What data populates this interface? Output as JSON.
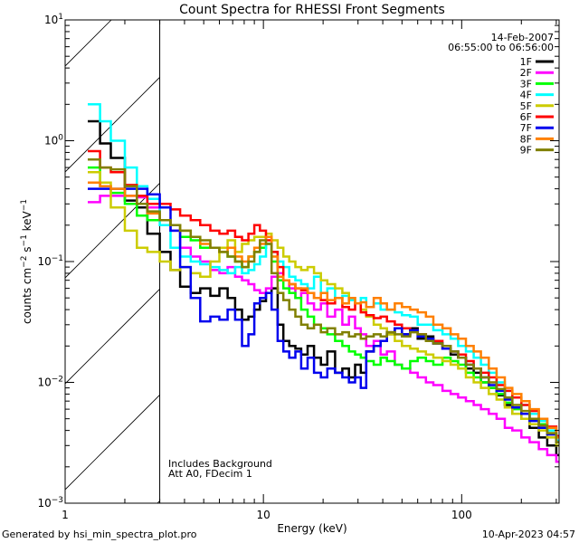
{
  "chart_data": {
    "type": "line",
    "title": "Count Spectra for RHESSI Front Segments",
    "xlabel": "Energy (keV)",
    "ylabel": "counts cm-2 s-1 keV-1",
    "xscale": "log",
    "yscale": "log",
    "xlim": [
      1,
      310
    ],
    "ylim": [
      0.001,
      10
    ],
    "x_ticks": [
      {
        "value": 1,
        "label": "1"
      },
      {
        "value": 10,
        "label": "10"
      },
      {
        "value": 100,
        "label": "100"
      }
    ],
    "y_ticks": [
      {
        "value": 10,
        "base": "10",
        "exp": "1"
      },
      {
        "value": 1,
        "base": "10",
        "exp": "0"
      },
      {
        "value": 0.1,
        "base": "10",
        "exp": "−1"
      },
      {
        "value": 0.01,
        "base": "10",
        "exp": "−2"
      },
      {
        "value": 0.001,
        "base": "10",
        "exp": "−3"
      }
    ],
    "grid": false,
    "excluded_region": {
      "from": 1,
      "to": 3,
      "style": "hatched"
    },
    "annotations": {
      "date": "14-Feb-2007",
      "time_range": "06:55:00 to 06:56:00",
      "notes": [
        "Includes Background",
        "Att A0, FDecim 1"
      ]
    },
    "legend_position": "top-right",
    "series": [
      {
        "name": "1F",
        "color": "#000000",
        "x": [
          1.3,
          1.5,
          1.7,
          2.0,
          2.3,
          2.6,
          3.0,
          3.4,
          3.8,
          4.3,
          4.8,
          5.4,
          6.0,
          6.6,
          7.2,
          7.8,
          8.4,
          9.0,
          9.6,
          10.3,
          11.0,
          11.8,
          12.6,
          13.5,
          14.5,
          15.5,
          16.7,
          18.0,
          19.5,
          21,
          23,
          25,
          27,
          29,
          31,
          33,
          36,
          39,
          42,
          46,
          50,
          55,
          60,
          66,
          72,
          80,
          88,
          96,
          105,
          115,
          125,
          137,
          150,
          165,
          180,
          200,
          220,
          245,
          270,
          300
        ],
        "y": [
          1.45,
          0.95,
          0.72,
          0.32,
          0.28,
          0.17,
          0.12,
          0.085,
          0.062,
          0.055,
          0.06,
          0.052,
          0.06,
          0.05,
          0.04,
          0.033,
          0.035,
          0.04,
          0.047,
          0.055,
          0.06,
          0.03,
          0.022,
          0.02,
          0.019,
          0.017,
          0.02,
          0.016,
          0.014,
          0.018,
          0.012,
          0.013,
          0.011,
          0.014,
          0.012,
          0.018,
          0.02,
          0.022,
          0.025,
          0.028,
          0.025,
          0.028,
          0.023,
          0.024,
          0.021,
          0.019,
          0.017,
          0.016,
          0.013,
          0.012,
          0.01,
          0.009,
          0.0078,
          0.0065,
          0.0055,
          0.005,
          0.0042,
          0.0035,
          0.003,
          0.0025
        ]
      },
      {
        "name": "2F",
        "color": "#ff00ff",
        "x": [
          1.3,
          1.5,
          1.7,
          2.0,
          2.3,
          2.6,
          3.0,
          3.4,
          3.8,
          4.3,
          4.8,
          5.4,
          6.0,
          6.6,
          7.2,
          7.8,
          8.4,
          9.0,
          9.6,
          10.3,
          11.0,
          11.8,
          12.6,
          13.5,
          14.5,
          15.5,
          16.7,
          18.0,
          19.5,
          21,
          23,
          25,
          27,
          29,
          31,
          33,
          36,
          39,
          42,
          46,
          50,
          55,
          60,
          66,
          72,
          80,
          88,
          96,
          105,
          115,
          125,
          137,
          150,
          165,
          180,
          200,
          220,
          245,
          270,
          300
        ],
        "y": [
          0.31,
          0.35,
          0.35,
          0.35,
          0.34,
          0.28,
          0.22,
          0.18,
          0.13,
          0.11,
          0.1,
          0.085,
          0.08,
          0.09,
          0.075,
          0.07,
          0.065,
          0.058,
          0.055,
          0.06,
          0.075,
          0.08,
          0.07,
          0.06,
          0.05,
          0.055,
          0.045,
          0.04,
          0.045,
          0.035,
          0.04,
          0.03,
          0.035,
          0.028,
          0.025,
          0.02,
          0.022,
          0.017,
          0.018,
          0.014,
          0.013,
          0.012,
          0.011,
          0.01,
          0.0095,
          0.0085,
          0.008,
          0.0075,
          0.007,
          0.0065,
          0.006,
          0.0055,
          0.005,
          0.0042,
          0.004,
          0.0035,
          0.0032,
          0.0028,
          0.0025,
          0.0022
        ]
      },
      {
        "name": "3F",
        "color": "#00ff00",
        "x": [
          1.3,
          1.5,
          1.7,
          2.0,
          2.3,
          2.6,
          3.0,
          3.4,
          3.8,
          4.3,
          4.8,
          5.4,
          6.0,
          6.6,
          7.2,
          7.8,
          8.4,
          9.0,
          9.6,
          10.3,
          11.0,
          11.8,
          12.6,
          13.5,
          14.5,
          15.5,
          16.7,
          18.0,
          19.5,
          21,
          23,
          25,
          27,
          29,
          31,
          33,
          36,
          39,
          42,
          46,
          50,
          55,
          60,
          66,
          72,
          80,
          88,
          96,
          105,
          115,
          125,
          137,
          150,
          165,
          180,
          200,
          220,
          245,
          270,
          300
        ],
        "y": [
          0.6,
          0.42,
          0.37,
          0.3,
          0.24,
          0.22,
          0.22,
          0.2,
          0.16,
          0.15,
          0.13,
          0.13,
          0.12,
          0.11,
          0.1,
          0.09,
          0.11,
          0.12,
          0.13,
          0.14,
          0.1,
          0.07,
          0.06,
          0.055,
          0.05,
          0.04,
          0.035,
          0.03,
          0.028,
          0.025,
          0.022,
          0.02,
          0.018,
          0.017,
          0.016,
          0.015,
          0.014,
          0.016,
          0.015,
          0.014,
          0.013,
          0.015,
          0.016,
          0.015,
          0.014,
          0.016,
          0.015,
          0.014,
          0.012,
          0.011,
          0.01,
          0.009,
          0.008,
          0.0068,
          0.006,
          0.0055,
          0.005,
          0.0045,
          0.0038,
          0.003
        ]
      },
      {
        "name": "4F",
        "color": "#00ffff",
        "x": [
          1.3,
          1.5,
          1.7,
          2.0,
          2.3,
          2.6,
          3.0,
          3.4,
          3.8,
          4.3,
          4.8,
          5.4,
          6.0,
          6.6,
          7.2,
          7.8,
          8.4,
          9.0,
          9.6,
          10.3,
          11.0,
          11.8,
          12.6,
          13.5,
          14.5,
          15.5,
          16.7,
          18.0,
          19.5,
          21,
          23,
          25,
          27,
          29,
          31,
          33,
          36,
          39,
          42,
          46,
          50,
          55,
          60,
          66,
          72,
          80,
          88,
          96,
          105,
          115,
          125,
          137,
          150,
          165,
          180,
          200,
          220,
          245,
          270,
          300
        ],
        "y": [
          2.0,
          1.45,
          1.0,
          0.6,
          0.42,
          0.33,
          0.2,
          0.13,
          0.11,
          0.1,
          0.095,
          0.09,
          0.085,
          0.08,
          0.09,
          0.08,
          0.085,
          0.095,
          0.11,
          0.14,
          0.12,
          0.1,
          0.09,
          0.075,
          0.07,
          0.065,
          0.06,
          0.075,
          0.055,
          0.06,
          0.05,
          0.052,
          0.048,
          0.045,
          0.05,
          0.042,
          0.045,
          0.04,
          0.04,
          0.038,
          0.036,
          0.035,
          0.03,
          0.03,
          0.027,
          0.025,
          0.023,
          0.02,
          0.018,
          0.016,
          0.014,
          0.012,
          0.01,
          0.0085,
          0.0075,
          0.0065,
          0.0055,
          0.0048,
          0.004,
          0.0033
        ]
      },
      {
        "name": "5F",
        "color": "#cccc00",
        "x": [
          1.3,
          1.5,
          1.7,
          2.0,
          2.3,
          2.6,
          3.0,
          3.4,
          3.8,
          4.3,
          4.8,
          5.4,
          6.0,
          6.6,
          7.2,
          7.8,
          8.4,
          9.0,
          9.6,
          10.3,
          11.0,
          11.8,
          12.6,
          13.5,
          14.5,
          15.5,
          16.7,
          18.0,
          19.5,
          21,
          23,
          25,
          27,
          29,
          31,
          33,
          36,
          39,
          42,
          46,
          50,
          55,
          60,
          66,
          72,
          80,
          88,
          96,
          105,
          115,
          125,
          137,
          150,
          165,
          180,
          200,
          220,
          245,
          270,
          300
        ],
        "y": [
          0.55,
          0.45,
          0.28,
          0.18,
          0.13,
          0.12,
          0.1,
          0.085,
          0.09,
          0.08,
          0.075,
          0.1,
          0.13,
          0.15,
          0.12,
          0.14,
          0.15,
          0.16,
          0.16,
          0.17,
          0.15,
          0.13,
          0.11,
          0.1,
          0.09,
          0.085,
          0.09,
          0.08,
          0.07,
          0.065,
          0.06,
          0.055,
          0.05,
          0.045,
          0.04,
          0.035,
          0.03,
          0.028,
          0.025,
          0.022,
          0.02,
          0.019,
          0.018,
          0.017,
          0.016,
          0.015,
          0.014,
          0.013,
          0.011,
          0.01,
          0.009,
          0.008,
          0.0072,
          0.0062,
          0.0055,
          0.005,
          0.0045,
          0.004,
          0.0035,
          0.003
        ]
      },
      {
        "name": "6F",
        "color": "#ff0000",
        "x": [
          1.3,
          1.5,
          1.7,
          2.0,
          2.3,
          2.6,
          3.0,
          3.4,
          3.8,
          4.3,
          4.8,
          5.4,
          6.0,
          6.6,
          7.2,
          7.8,
          8.4,
          9.0,
          9.6,
          10.3,
          11.0,
          11.8,
          12.6,
          13.5,
          14.5,
          15.5,
          16.7,
          18.0,
          19.5,
          21,
          23,
          25,
          27,
          29,
          31,
          33,
          36,
          39,
          42,
          46,
          50,
          55,
          60,
          66,
          72,
          80,
          88,
          96,
          105,
          115,
          125,
          137,
          150,
          165,
          180,
          200,
          220,
          245,
          270,
          300
        ],
        "y": [
          0.82,
          0.6,
          0.55,
          0.43,
          0.35,
          0.3,
          0.3,
          0.27,
          0.24,
          0.22,
          0.2,
          0.18,
          0.17,
          0.18,
          0.16,
          0.15,
          0.17,
          0.2,
          0.18,
          0.15,
          0.12,
          0.09,
          0.07,
          0.065,
          0.06,
          0.058,
          0.055,
          0.05,
          0.048,
          0.045,
          0.05,
          0.042,
          0.04,
          0.045,
          0.038,
          0.036,
          0.034,
          0.035,
          0.032,
          0.03,
          0.028,
          0.027,
          0.025,
          0.023,
          0.022,
          0.02,
          0.018,
          0.017,
          0.015,
          0.013,
          0.012,
          0.011,
          0.0095,
          0.0085,
          0.0075,
          0.0065,
          0.0058,
          0.005,
          0.0043,
          0.0036
        ]
      },
      {
        "name": "7F",
        "color": "#0000ee",
        "x": [
          1.3,
          1.5,
          1.7,
          2.0,
          2.3,
          2.6,
          3.0,
          3.4,
          3.8,
          4.3,
          4.8,
          5.4,
          6.0,
          6.6,
          7.2,
          7.8,
          8.4,
          9.0,
          9.6,
          10.3,
          11.0,
          11.8,
          12.6,
          13.5,
          14.5,
          15.5,
          16.7,
          18.0,
          19.5,
          21,
          23,
          25,
          27,
          29,
          31,
          33,
          36,
          39,
          42,
          46,
          50,
          55,
          60,
          66,
          72,
          80,
          88,
          96,
          105,
          115,
          125,
          137,
          150,
          165,
          180,
          200,
          220,
          245,
          270,
          300
        ],
        "y": [
          0.4,
          0.4,
          0.4,
          0.4,
          0.4,
          0.36,
          0.28,
          0.18,
          0.09,
          0.05,
          0.032,
          0.035,
          0.033,
          0.04,
          0.033,
          0.02,
          0.025,
          0.045,
          0.05,
          0.055,
          0.04,
          0.022,
          0.018,
          0.016,
          0.018,
          0.013,
          0.016,
          0.012,
          0.011,
          0.013,
          0.012,
          0.011,
          0.01,
          0.011,
          0.009,
          0.018,
          0.02,
          0.022,
          0.026,
          0.028,
          0.025,
          0.027,
          0.024,
          0.023,
          0.021,
          0.019,
          0.018,
          0.016,
          0.014,
          0.013,
          0.011,
          0.0095,
          0.0085,
          0.0072,
          0.0062,
          0.0055,
          0.0048,
          0.0042,
          0.0037,
          0.0032
        ]
      },
      {
        "name": "8F",
        "color": "#ff8000",
        "x": [
          1.3,
          1.5,
          1.7,
          2.0,
          2.3,
          2.6,
          3.0,
          3.4,
          3.8,
          4.3,
          4.8,
          5.4,
          6.0,
          6.6,
          7.2,
          7.8,
          8.4,
          9.0,
          9.6,
          10.3,
          11.0,
          11.8,
          12.6,
          13.5,
          14.5,
          15.5,
          16.7,
          18.0,
          19.5,
          21,
          23,
          25,
          27,
          29,
          31,
          33,
          36,
          39,
          42,
          46,
          50,
          55,
          60,
          66,
          72,
          80,
          88,
          96,
          105,
          115,
          125,
          137,
          150,
          165,
          180,
          200,
          220,
          245,
          270,
          300
        ],
        "y": [
          0.45,
          0.42,
          0.4,
          0.35,
          0.3,
          0.25,
          0.22,
          0.2,
          0.18,
          0.16,
          0.14,
          0.13,
          0.12,
          0.13,
          0.11,
          0.1,
          0.11,
          0.13,
          0.14,
          0.16,
          0.11,
          0.075,
          0.07,
          0.065,
          0.06,
          0.06,
          0.055,
          0.05,
          0.055,
          0.048,
          0.05,
          0.045,
          0.05,
          0.045,
          0.046,
          0.042,
          0.05,
          0.045,
          0.04,
          0.045,
          0.042,
          0.04,
          0.038,
          0.035,
          0.03,
          0.028,
          0.025,
          0.023,
          0.02,
          0.018,
          0.016,
          0.013,
          0.011,
          0.009,
          0.008,
          0.007,
          0.006,
          0.005,
          0.0042,
          0.0035
        ]
      },
      {
        "name": "9F",
        "color": "#808000",
        "x": [
          1.3,
          1.5,
          1.7,
          2.0,
          2.3,
          2.6,
          3.0,
          3.4,
          3.8,
          4.3,
          4.8,
          5.4,
          6.0,
          6.6,
          7.2,
          7.8,
          8.4,
          9.0,
          9.6,
          10.3,
          11.0,
          11.8,
          12.6,
          13.5,
          14.5,
          15.5,
          16.7,
          18.0,
          19.5,
          21,
          23,
          25,
          27,
          29,
          31,
          33,
          36,
          39,
          42,
          46,
          50,
          55,
          60,
          66,
          72,
          80,
          88,
          96,
          105,
          115,
          125,
          137,
          150,
          165,
          180,
          200,
          220,
          245,
          270,
          300
        ],
        "y": [
          0.7,
          0.6,
          0.58,
          0.42,
          0.3,
          0.26,
          0.22,
          0.2,
          0.18,
          0.16,
          0.15,
          0.13,
          0.12,
          0.11,
          0.1,
          0.09,
          0.1,
          0.12,
          0.15,
          0.14,
          0.08,
          0.055,
          0.048,
          0.04,
          0.035,
          0.03,
          0.028,
          0.03,
          0.026,
          0.028,
          0.025,
          0.026,
          0.024,
          0.025,
          0.023,
          0.024,
          0.025,
          0.024,
          0.026,
          0.025,
          0.024,
          0.026,
          0.025,
          0.022,
          0.021,
          0.02,
          0.018,
          0.016,
          0.014,
          0.013,
          0.011,
          0.01,
          0.0088,
          0.0075,
          0.0065,
          0.0058,
          0.005,
          0.0044,
          0.0038,
          0.0032
        ]
      }
    ]
  },
  "footer": {
    "generated_by": "Generated by hsi_min_spectra_plot.pro",
    "timestamp": "10-Apr-2023 04:57"
  }
}
